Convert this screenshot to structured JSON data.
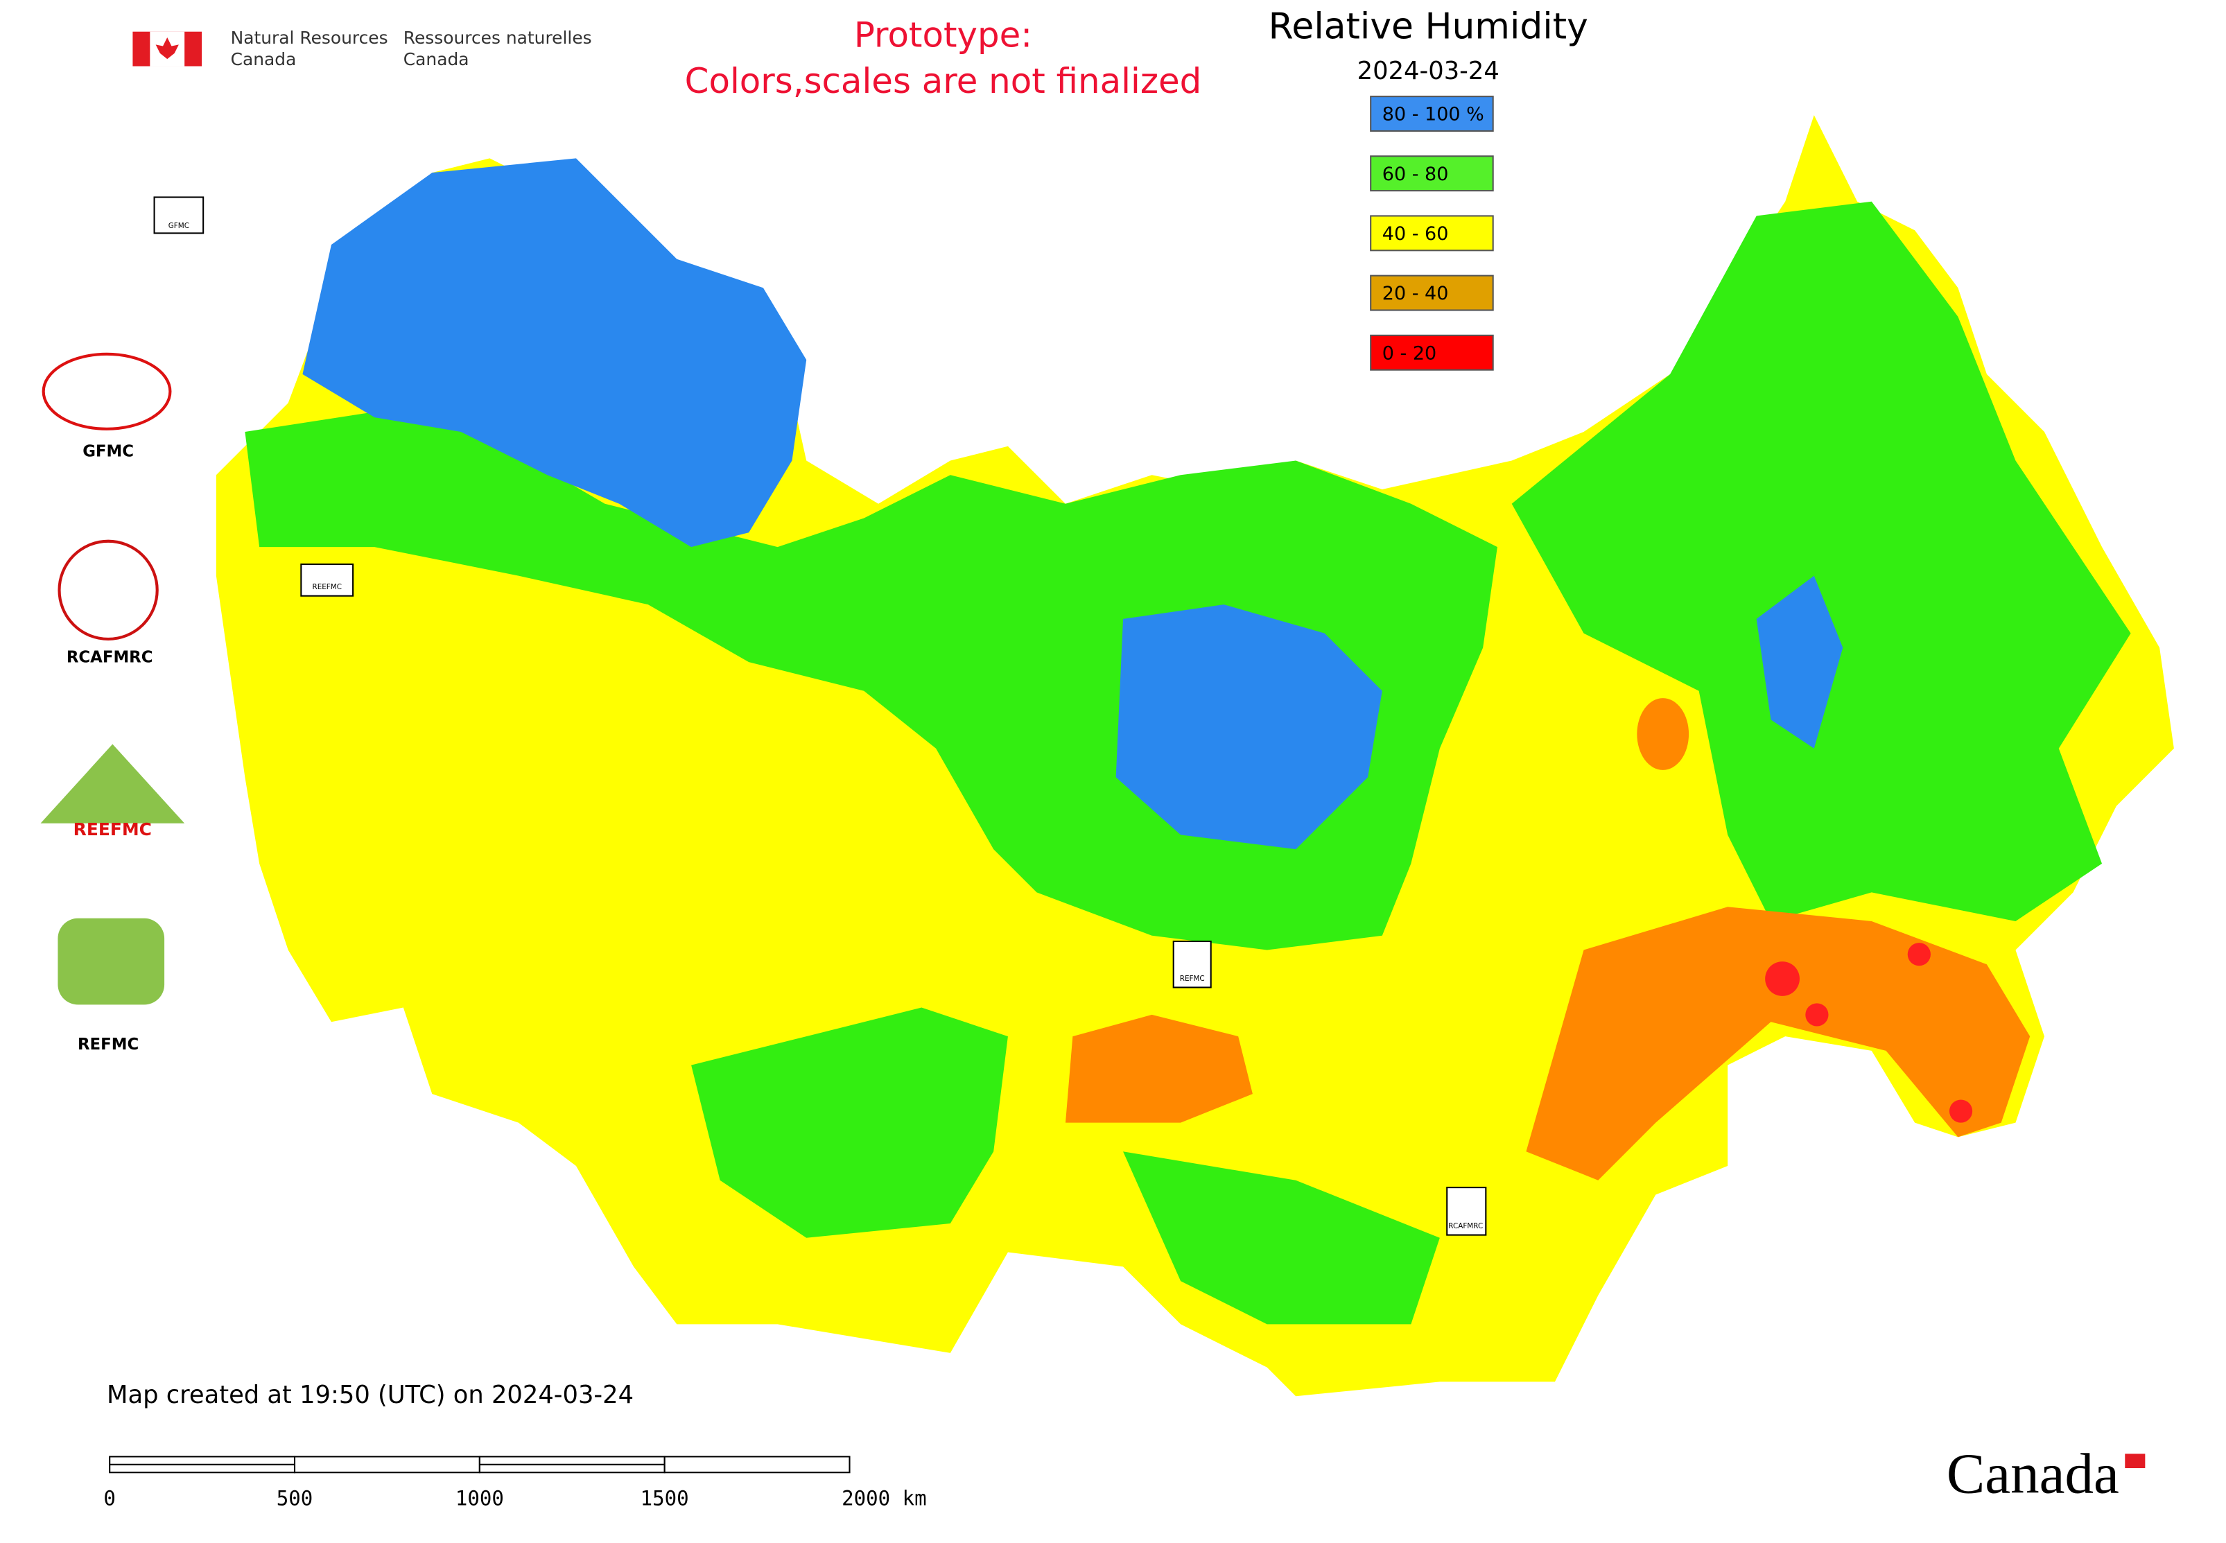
{
  "header": {
    "department_en": [
      "Natural Resources",
      "Canada"
    ],
    "department_fr": [
      "Ressources naturelles",
      "Canada"
    ],
    "notice": [
      "Prototype:",
      "Colors,scales are not finalized"
    ]
  },
  "title": "Relative Humidity",
  "date": "2024-03-24",
  "legend": [
    {
      "label": "80 - 100 %",
      "color": "#3a8ef0"
    },
    {
      "label": "60 - 80",
      "color": "#55f02a"
    },
    {
      "label": "40 - 60",
      "color": "#ffff00"
    },
    {
      "label": "20 - 40",
      "color": "#e0a000"
    },
    {
      "label": "0 - 20",
      "color": "#ff0000"
    }
  ],
  "logos": [
    "GFMC",
    "RCAFMRC",
    "REEFMC",
    "REFMC"
  ],
  "stations": [
    "GFMC",
    "REEFMC",
    "REFMC",
    "RCAFMRC"
  ],
  "footer": "Map created at 19:50 (UTC) on 2024-03-24",
  "scale_bar": [
    "0",
    "500",
    "1000",
    "1500",
    "2000 km"
  ],
  "wordmark": "Canada"
}
